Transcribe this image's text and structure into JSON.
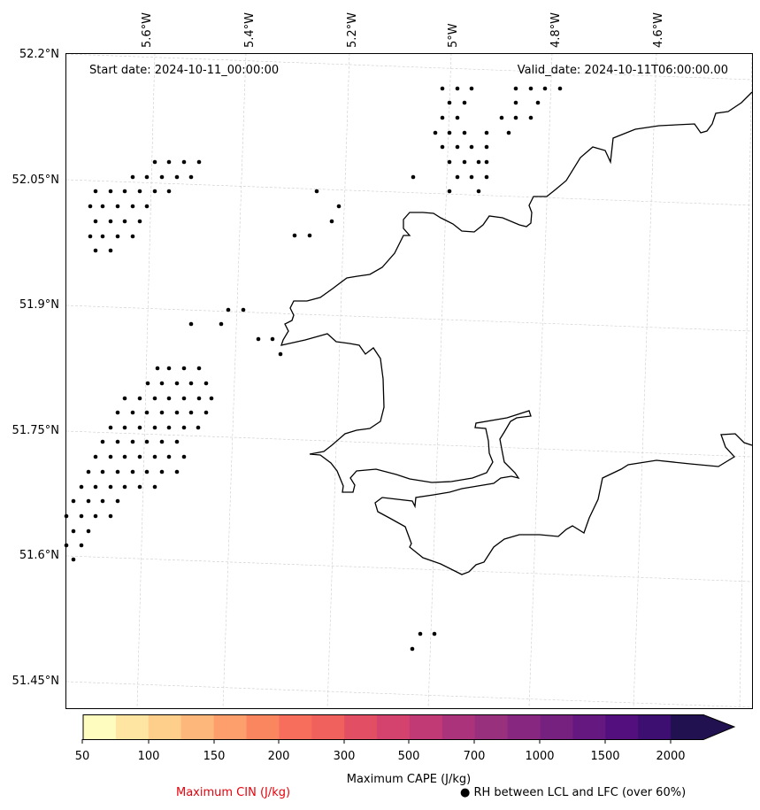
{
  "header": {
    "start_date": "Start date: 2024-10-11_00:00:00",
    "valid_date": "Valid_date: 2024-10-11T06:00:00.00"
  },
  "axes": {
    "lon_labels": [
      "5.6°W",
      "5.4°W",
      "5.2°W",
      "5°W",
      "4.8°W",
      "4.6°W"
    ],
    "lat_labels": [
      "52.2°N",
      "52.05°N",
      "51.9°N",
      "51.75°N",
      "51.6°N",
      "51.45°N"
    ]
  },
  "colorbar": {
    "title": "Maximum CAPE (J/kg)",
    "tick_labels": [
      "50",
      "100",
      "150",
      "200",
      "300",
      "500",
      "700",
      "1000",
      "1500",
      "2000"
    ],
    "colors": [
      "#fefdbf",
      "#fee5a1",
      "#fece8b",
      "#feb77b",
      "#fd9f6c",
      "#fa8660",
      "#f76e5c",
      "#f0605d",
      "#e24f65",
      "#d3436e",
      "#c13a75",
      "#ab337c",
      "#99307d",
      "#88277f",
      "#76217f",
      "#65187f",
      "#530f7d",
      "#3d0f71",
      "#221150"
    ],
    "extend_color": "#221150"
  },
  "legend": {
    "cin_label": "Maximum CIN (J/kg)",
    "rh_label": "● RH between LCL and LFC (over 60%)",
    "cin_color": "#e8000b"
  }
}
